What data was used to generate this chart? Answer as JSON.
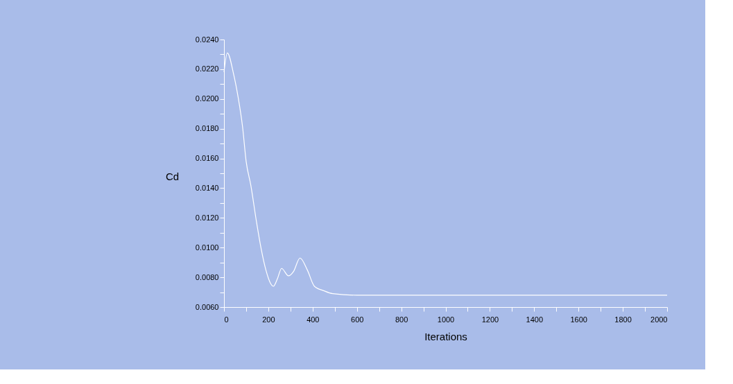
{
  "chart_data": {
    "type": "line",
    "xlabel": "Iterations",
    "ylabel": "Cd",
    "x": [
      0,
      15,
      43,
      64,
      84,
      100,
      121,
      147,
      168,
      189,
      210,
      223,
      241,
      260,
      291,
      314,
      343,
      376,
      408,
      450,
      491,
      600,
      1000,
      1500,
      2000
    ],
    "series": [
      {
        "color": "#ffffff",
        "values": [
          0.0218,
          0.0231,
          0.0217,
          0.0201,
          0.0181,
          0.0158,
          0.0142,
          0.0117,
          0.0099,
          0.0085,
          0.0076,
          0.0074,
          0.0079,
          0.0086,
          0.0081,
          0.0084,
          0.0093,
          0.0085,
          0.0074,
          0.0071,
          0.0069,
          0.0068,
          0.0068,
          0.0068,
          0.0068
        ]
      }
    ],
    "xlim": [
      0,
      2000
    ],
    "xticks": [
      0,
      {
        "value": 100,
        "label": null
      },
      200,
      {
        "value": 300,
        "label": null
      },
      400,
      {
        "value": 500,
        "label": null
      },
      600,
      {
        "value": 700,
        "label": null
      },
      800,
      {
        "value": 900,
        "label": null
      },
      1000,
      {
        "value": 1100,
        "label": null
      },
      1200,
      {
        "value": 1300,
        "label": null
      },
      1400,
      {
        "value": 1500,
        "label": null
      },
      1600,
      {
        "value": 1700,
        "label": null
      },
      1800,
      {
        "value": 1900,
        "label": null
      },
      2000
    ],
    "ylim": [
      0.006,
      0.024
    ],
    "yticks": [
      {
        "value": 0.006,
        "label": "0.0060"
      },
      {
        "value": 0.007,
        "label": null
      },
      {
        "value": 0.008,
        "label": "0.0080"
      },
      {
        "value": 0.009,
        "label": null
      },
      {
        "value": 0.01,
        "label": "0.0100"
      },
      {
        "value": 0.011,
        "label": null
      },
      {
        "value": 0.012,
        "label": "0.0120"
      },
      {
        "value": 0.013,
        "label": null
      },
      {
        "value": 0.014,
        "label": "0.0140"
      },
      {
        "value": 0.015,
        "label": null
      },
      {
        "value": 0.016,
        "label": "0.0160"
      },
      {
        "value": 0.017,
        "label": null
      },
      {
        "value": 0.018,
        "label": "0.0180"
      },
      {
        "value": 0.019,
        "label": null
      },
      {
        "value": 0.02,
        "label": "0.0200"
      },
      {
        "value": 0.021,
        "label": null
      },
      {
        "value": 0.022,
        "label": "0.0220"
      },
      {
        "value": 0.023,
        "label": null
      },
      {
        "value": 0.024,
        "label": "0.0240"
      }
    ],
    "grid": false,
    "marker": "none",
    "line_style": "solid"
  }
}
